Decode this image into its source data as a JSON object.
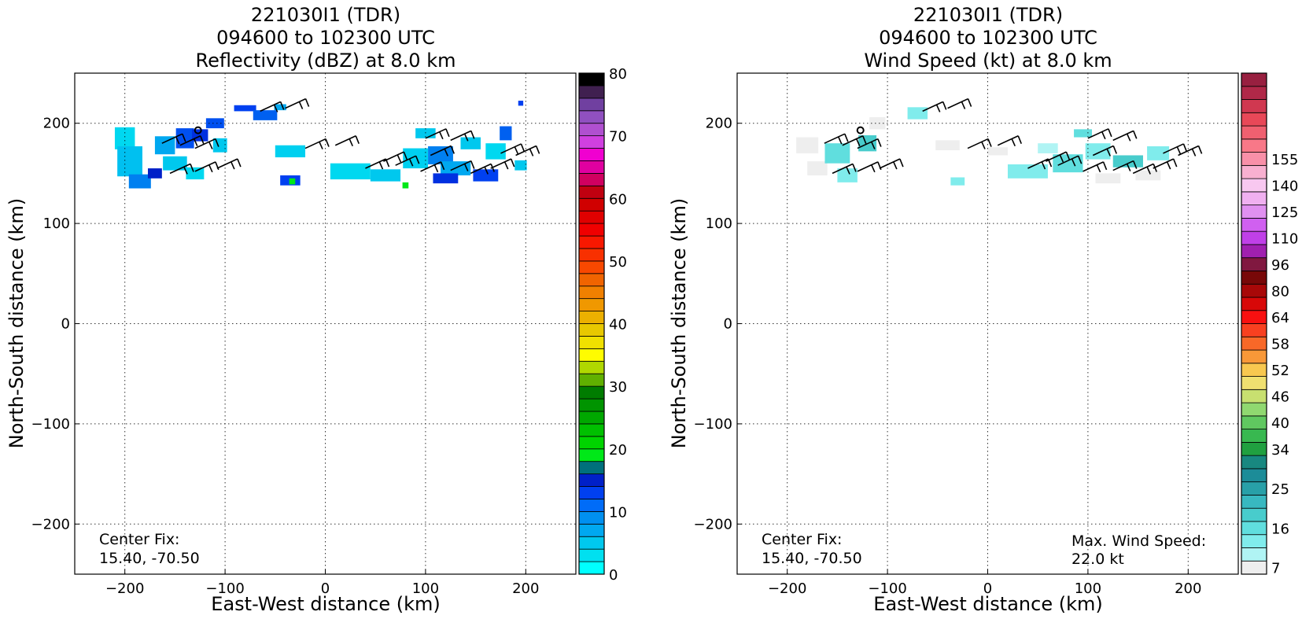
{
  "panels": [
    {
      "title_lines": [
        "221030I1 (TDR)",
        "094600 to 102300 UTC",
        "Reflectivity (dBZ) at 8.0 km"
      ],
      "annotation": {
        "label": "Center Fix:",
        "value": "15.40, -70.50"
      }
    },
    {
      "title_lines": [
        "221030I1 (TDR)",
        "094600 to 102300 UTC",
        "Wind Speed (kt) at 8.0 km"
      ],
      "annotation": {
        "label": "Center Fix:",
        "value": "15.40, -70.50"
      },
      "max_annotation": {
        "label": "Max. Wind Speed:",
        "value": "22.0 kt"
      }
    }
  ],
  "chart_data": [
    {
      "type": "heatmap",
      "title": "221030I1 (TDR) 094600 to 102300 UTC Reflectivity (dBZ) at 8.0 km",
      "xlabel": "East-West distance (km)",
      "ylabel": "North-South distance (km)",
      "xlim": [
        -250,
        250
      ],
      "ylim": [
        -250,
        250
      ],
      "xticks": [
        -200,
        -100,
        0,
        100,
        200
      ],
      "yticks": [
        -200,
        -100,
        0,
        100,
        200
      ],
      "grid": true,
      "colorbar": {
        "ticks": [
          0,
          10,
          20,
          30,
          40,
          50,
          60,
          70,
          80
        ],
        "colors": [
          "#00ffff",
          "#00e0f0",
          "#00c8ee",
          "#00a8f0",
          "#0090f0",
          "#006cf8",
          "#0040f0",
          "#0020c8",
          "#00707c",
          "#00e818",
          "#00d400",
          "#00c000",
          "#00a800",
          "#009400",
          "#007c00",
          "#60b000",
          "#b0d800",
          "#fffc00",
          "#f0e000",
          "#e8c800",
          "#ecb000",
          "#f09800",
          "#f08000",
          "#f06400",
          "#f84800",
          "#f83000",
          "#f81800",
          "#f00000",
          "#e00000",
          "#d00000",
          "#c00010",
          "#d00060",
          "#e000a0",
          "#f000d0",
          "#d040e0",
          "#b050d0",
          "#9050c0",
          "#7040a0",
          "#402050",
          "#000000"
        ]
      },
      "cells": [
        [
          -200,
          185,
          20,
          22,
          "#00d8f0"
        ],
        [
          -195,
          162,
          25,
          30,
          "#00c0f0"
        ],
        [
          -185,
          142,
          22,
          14,
          "#0080f0"
        ],
        [
          -160,
          178,
          20,
          18,
          "#00a8f0"
        ],
        [
          -140,
          185,
          18,
          20,
          "#0050f0"
        ],
        [
          -125,
          188,
          16,
          12,
          "#0030e0"
        ],
        [
          -150,
          160,
          24,
          14,
          "#00c8ee"
        ],
        [
          -130,
          150,
          18,
          12,
          "#00d8f0"
        ],
        [
          -110,
          200,
          18,
          10,
          "#0050f0"
        ],
        [
          -105,
          178,
          14,
          14,
          "#00c8ee"
        ],
        [
          -170,
          150,
          14,
          10,
          "#0020c8"
        ],
        [
          -80,
          215,
          22,
          6,
          "#0040f0"
        ],
        [
          -60,
          208,
          24,
          10,
          "#0060f0"
        ],
        [
          -45,
          216,
          12,
          6,
          "#00a8f0"
        ],
        [
          -35,
          172,
          30,
          12,
          "#00d0f0"
        ],
        [
          -35,
          143,
          20,
          10,
          "#0040f0"
        ],
        [
          -33,
          142,
          6,
          6,
          "#00e818"
        ],
        [
          25,
          152,
          40,
          16,
          "#00d8f0"
        ],
        [
          60,
          148,
          30,
          12,
          "#00c8ee"
        ],
        [
          90,
          165,
          25,
          20,
          "#00d0f0"
        ],
        [
          100,
          190,
          20,
          10,
          "#00c8ee"
        ],
        [
          115,
          168,
          25,
          18,
          "#0080f0"
        ],
        [
          130,
          155,
          30,
          14,
          "#00a8f0"
        ],
        [
          120,
          145,
          25,
          10,
          "#0030e0"
        ],
        [
          160,
          148,
          25,
          12,
          "#0040f0"
        ],
        [
          170,
          172,
          20,
          16,
          "#00d8f0"
        ],
        [
          180,
          190,
          12,
          14,
          "#0060f0"
        ],
        [
          195,
          158,
          12,
          10,
          "#00c8ee"
        ],
        [
          80,
          138,
          6,
          6,
          "#00e818"
        ],
        [
          195,
          220,
          5,
          5,
          "#0040f0"
        ],
        [
          145,
          180,
          20,
          12,
          "#00c8ee"
        ]
      ],
      "barbs": [
        [
          -163,
          180
        ],
        [
          -145,
          178
        ],
        [
          -130,
          175
        ],
        [
          -155,
          150
        ],
        [
          -130,
          152
        ],
        [
          -108,
          155
        ],
        [
          -65,
          212
        ],
        [
          -40,
          215
        ],
        [
          -20,
          175
        ],
        [
          10,
          178
        ],
        [
          58,
          162
        ],
        [
          40,
          155
        ],
        [
          70,
          158
        ],
        [
          95,
          152
        ],
        [
          100,
          185
        ],
        [
          125,
          183
        ],
        [
          105,
          168
        ],
        [
          125,
          153
        ],
        [
          145,
          150
        ],
        [
          165,
          155
        ],
        [
          175,
          170
        ],
        [
          190,
          168
        ]
      ],
      "center_marker": [
        -127,
        193
      ]
    },
    {
      "type": "heatmap",
      "title": "221030I1 (TDR) 094600 to 102300 UTC Wind Speed (kt) at 8.0 km",
      "xlabel": "East-West distance (km)",
      "ylabel": "North-South distance (km)",
      "xlim": [
        -250,
        250
      ],
      "ylim": [
        -250,
        250
      ],
      "xticks": [
        -200,
        -100,
        0,
        100,
        200
      ],
      "yticks": [
        -200,
        -100,
        0,
        100,
        200
      ],
      "grid": true,
      "colorbar": {
        "tick_labels": [
          {
            "label": "7",
            "index": 0
          },
          {
            "label": "16",
            "index": 3
          },
          {
            "label": "25",
            "index": 6
          },
          {
            "label": "34",
            "index": 9
          },
          {
            "label": "40",
            "index": 11
          },
          {
            "label": "46",
            "index": 13
          },
          {
            "label": "52",
            "index": 15
          },
          {
            "label": "58",
            "index": 17
          },
          {
            "label": "64",
            "index": 19
          },
          {
            "label": "80",
            "index": 21
          },
          {
            "label": "96",
            "index": 23
          },
          {
            "label": "110",
            "index": 25
          },
          {
            "label": "125",
            "index": 27
          },
          {
            "label": "140",
            "index": 29
          },
          {
            "label": "155",
            "index": 31
          }
        ],
        "colors": [
          "#eeeeee",
          "#b0f4f4",
          "#80ecec",
          "#60dede",
          "#48cccc",
          "#38b8c0",
          "#28a0a8",
          "#1c8c98",
          "#188880",
          "#20a040",
          "#38b850",
          "#60c860",
          "#90d870",
          "#c8e070",
          "#f0e070",
          "#f8c850",
          "#f89838",
          "#f86828",
          "#f84020",
          "#f81010",
          "#d80808",
          "#a80808",
          "#780808",
          "#801840",
          "#a020b0",
          "#c040e8",
          "#d060f0",
          "#e090f0",
          "#f0b0f0",
          "#f8c8f0",
          "#f8b0d0",
          "#f890a8",
          "#f87888",
          "#f06070",
          "#e84858",
          "#d03850",
          "#b02848",
          "#982040"
        ]
      },
      "cells": [
        [
          -180,
          178,
          22,
          16,
          "#eeeeee"
        ],
        [
          -170,
          155,
          20,
          14,
          "#eeeeee"
        ],
        [
          -150,
          170,
          25,
          20,
          "#60dede"
        ],
        [
          -140,
          148,
          20,
          14,
          "#80ecec"
        ],
        [
          -120,
          180,
          18,
          16,
          "#48cccc"
        ],
        [
          -110,
          200,
          16,
          12,
          "#eeeeee"
        ],
        [
          -70,
          210,
          20,
          12,
          "#80ecec"
        ],
        [
          -40,
          178,
          24,
          10,
          "#eeeeee"
        ],
        [
          -30,
          142,
          14,
          8,
          "#80ecec"
        ],
        [
          10,
          172,
          20,
          8,
          "#eeeeee"
        ],
        [
          40,
          152,
          40,
          14,
          "#80ecec"
        ],
        [
          80,
          160,
          30,
          18,
          "#60dede"
        ],
        [
          110,
          172,
          25,
          16,
          "#80ecec"
        ],
        [
          140,
          162,
          30,
          12,
          "#48cccc"
        ],
        [
          170,
          170,
          22,
          14,
          "#80ecec"
        ],
        [
          120,
          145,
          25,
          10,
          "#eeeeee"
        ],
        [
          160,
          148,
          25,
          10,
          "#eeeeee"
        ],
        [
          60,
          175,
          20,
          10,
          "#b0f4f4"
        ],
        [
          95,
          190,
          18,
          8,
          "#60dede"
        ]
      ],
      "barbs": [
        [
          -163,
          180
        ],
        [
          -145,
          178
        ],
        [
          -130,
          175
        ],
        [
          -155,
          150
        ],
        [
          -130,
          152
        ],
        [
          -108,
          155
        ],
        [
          -65,
          212
        ],
        [
          -40,
          215
        ],
        [
          -20,
          175
        ],
        [
          10,
          178
        ],
        [
          58,
          162
        ],
        [
          40,
          155
        ],
        [
          70,
          158
        ],
        [
          95,
          152
        ],
        [
          100,
          185
        ],
        [
          125,
          183
        ],
        [
          105,
          168
        ],
        [
          125,
          153
        ],
        [
          145,
          150
        ],
        [
          165,
          155
        ],
        [
          175,
          170
        ],
        [
          190,
          168
        ]
      ],
      "center_marker": [
        -127,
        193
      ]
    }
  ]
}
